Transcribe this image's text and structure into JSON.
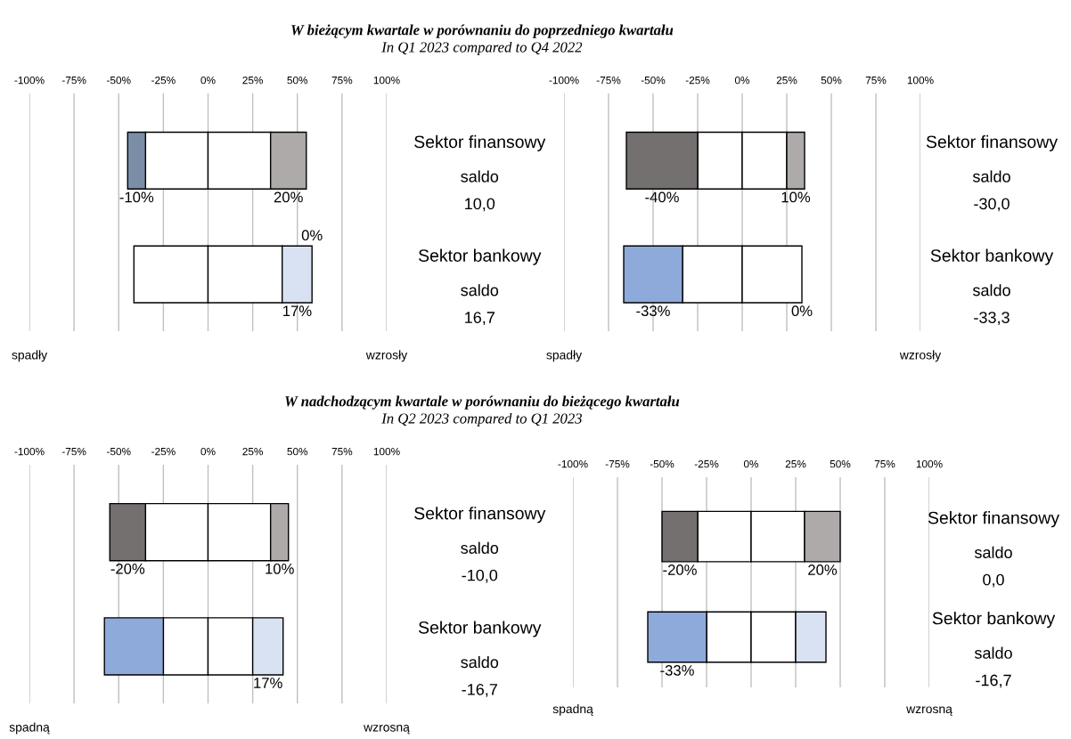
{
  "chart_data": [
    {
      "type": "bar",
      "title": "W bieżącym kwartale w porównaniu do poprzedniego kwartału",
      "subtitle": "In Q1 2023 compared to Q4 2022",
      "stacked": true,
      "orientation": "horizontal",
      "categories": [
        "Sektor finansowy",
        "Sektor bankowy"
      ],
      "series": [
        {
          "colors": [
            "#ffffff",
            "#ffffff"
          ],
          "values": [
            -35,
            -41.5
          ]
        },
        {
          "colors": [
            "#ffffff",
            "#ffffff"
          ],
          "values": [
            35,
            41.5
          ]
        },
        {
          "colors": [
            "#7b8ea8",
            "#8eaadb"
          ],
          "values": [
            -10,
            0
          ],
          "value_labels": [
            "-10%",
            null
          ]
        },
        {
          "colors": [
            "#aeaaaa",
            "#d9e2f3"
          ],
          "values": [
            20,
            16.7
          ],
          "value_labels": [
            "20%",
            "17%"
          ]
        }
      ],
      "xlim": [
        -100,
        100
      ],
      "xticks": [
        {
          "value": -100,
          "label": "-100%"
        },
        {
          "value": -75,
          "label": "-75%"
        },
        {
          "value": -50,
          "label": "-50%"
        },
        {
          "value": -25,
          "label": "-25%"
        },
        {
          "value": 0,
          "label": "0%"
        },
        {
          "value": 25,
          "label": "25%"
        },
        {
          "value": 50,
          "label": "50%"
        },
        {
          "value": 75,
          "label": "75%"
        },
        {
          "value": 100,
          "label": "100%"
        }
      ],
      "grid": "x",
      "annotations": [
        {
          "text": "0%",
          "x": 58.2,
          "y": "Sektor bankowy"
        },
        "saldo",
        "10,0",
        "saldo",
        "16,7",
        "spadły",
        "wzrosły"
      ]
    },
    {
      "type": "bar",
      "stacked": true,
      "orientation": "horizontal",
      "categories": [
        "Sektor finansowy",
        "Sektor bankowy"
      ],
      "series": [
        {
          "colors": [
            "#ffffff",
            "#ffffff"
          ],
          "values": [
            -25,
            -33.5
          ]
        },
        {
          "colors": [
            "#ffffff",
            "#ffffff"
          ],
          "values": [
            25,
            33.5
          ]
        },
        {
          "colors": [
            "#757070",
            "#8eaadb"
          ],
          "values": [
            -40,
            -33
          ],
          "value_labels": [
            "-40%",
            "-33%"
          ]
        },
        {
          "colors": [
            "#aeaaaa",
            "#d9e2f3"
          ],
          "values": [
            10,
            0
          ],
          "value_labels": [
            "10%",
            "0%"
          ]
        }
      ],
      "xlim": [
        -100,
        100
      ],
      "xticks": [
        {
          "value": -100,
          "label": "-100%"
        },
        {
          "value": -75,
          "label": "-75%"
        },
        {
          "value": -50,
          "label": "-50%"
        },
        {
          "value": -25,
          "label": "-25%"
        },
        {
          "value": 0,
          "label": "0%"
        },
        {
          "value": 25,
          "label": "25%"
        },
        {
          "value": 50,
          "label": "50%"
        },
        {
          "value": 75,
          "label": "75%"
        },
        {
          "value": 100,
          "label": "100%"
        }
      ],
      "grid": "x",
      "annotations": [
        "saldo",
        "-30,0",
        "saldo",
        "-33,3",
        "spadły",
        "wzrosły"
      ]
    },
    {
      "type": "bar",
      "title": "W nadchodzącym kwartale w porównaniu do bieżącego kwartału",
      "subtitle": "In Q2 2023 compared to Q1 2023",
      "stacked": true,
      "orientation": "horizontal",
      "categories": [
        "Sektor finansowy",
        "Sektor bankowy"
      ],
      "series": [
        {
          "colors": [
            "#ffffff",
            "#ffffff"
          ],
          "values": [
            -35,
            -25
          ]
        },
        {
          "colors": [
            "#ffffff",
            "#ffffff"
          ],
          "values": [
            35,
            25
          ]
        },
        {
          "colors": [
            "#757070",
            "#8eaadb"
          ],
          "values": [
            -20,
            -33
          ],
          "value_labels": [
            "-20%",
            null
          ]
        },
        {
          "colors": [
            "#aeaaaa",
            "#d9e2f3"
          ],
          "values": [
            10,
            17
          ],
          "value_labels": [
            "10%",
            "17%"
          ]
        }
      ],
      "xlim": [
        -100,
        100
      ],
      "xticks": [
        {
          "value": -100,
          "label": "-100%"
        },
        {
          "value": -75,
          "label": "-75%"
        },
        {
          "value": -50,
          "label": "-50%"
        },
        {
          "value": -25,
          "label": "-25%"
        },
        {
          "value": 0,
          "label": "0%"
        },
        {
          "value": 25,
          "label": "25%"
        },
        {
          "value": 50,
          "label": "50%"
        },
        {
          "value": 75,
          "label": "75%"
        },
        {
          "value": 100,
          "label": "100%"
        }
      ],
      "grid": "x",
      "annotations": [
        "saldo",
        "-10,0",
        "saldo",
        "-16,7",
        "spadną",
        "wzrosną"
      ]
    },
    {
      "type": "bar",
      "stacked": true,
      "orientation": "horizontal",
      "categories": [
        "Sektor finansowy",
        "Sektor bankowy"
      ],
      "series": [
        {
          "colors": [
            "#ffffff",
            "#ffffff"
          ],
          "values": [
            -30,
            -25
          ]
        },
        {
          "colors": [
            "#ffffff",
            "#ffffff"
          ],
          "values": [
            30,
            25
          ]
        },
        {
          "colors": [
            "#757070",
            "#8eaadb"
          ],
          "values": [
            -20,
            -33
          ],
          "value_labels": [
            "-20%",
            "-33%"
          ]
        },
        {
          "colors": [
            "#aeaaaa",
            "#d9e2f3"
          ],
          "values": [
            20,
            17
          ],
          "value_labels": [
            "20%",
            null
          ]
        }
      ],
      "xlim": [
        -100,
        100
      ],
      "xticks": [
        {
          "value": -100,
          "label": "-100%"
        },
        {
          "value": -75,
          "label": "-75%"
        },
        {
          "value": -50,
          "label": "-50%"
        },
        {
          "value": -25,
          "label": "-25%"
        },
        {
          "value": 0,
          "label": "0%"
        },
        {
          "value": 25,
          "label": "25%"
        },
        {
          "value": 50,
          "label": "50%"
        },
        {
          "value": 75,
          "label": "75%"
        },
        {
          "value": 100,
          "label": "100%"
        }
      ],
      "grid": "x",
      "annotations": [
        "saldo",
        "0,0",
        "saldo",
        "-16,7",
        "spadną",
        "wzrosną"
      ]
    }
  ]
}
